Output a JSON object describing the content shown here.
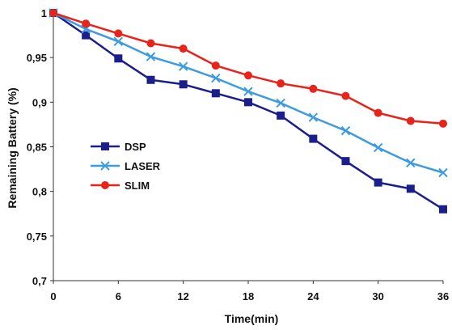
{
  "chart_data": {
    "type": "line",
    "xlabel": "Time(min)",
    "ylabel": "Remaining Battery (%)",
    "xlim": [
      0,
      36
    ],
    "ylim": [
      0.7,
      1.0
    ],
    "x_ticks": [
      "0",
      "6",
      "12",
      "18",
      "24",
      "30",
      "36"
    ],
    "x_tick_values": [
      0,
      6,
      12,
      18,
      24,
      30,
      36
    ],
    "y_ticks": [
      "0,7",
      "0,75",
      "0,8",
      "0,85",
      "0,9",
      "0,95",
      "1"
    ],
    "y_tick_values": [
      0.7,
      0.75,
      0.8,
      0.85,
      0.9,
      0.95,
      1.0
    ],
    "grid": false,
    "legend_position": "left",
    "x": [
      0,
      3,
      6,
      9,
      12,
      15,
      18,
      21,
      24,
      27,
      30,
      33,
      36
    ],
    "series": [
      {
        "name": "DSP",
        "color": "#1a1f8c",
        "marker": "square",
        "values": [
          1.0,
          0.975,
          0.949,
          0.925,
          0.92,
          0.91,
          0.9,
          0.885,
          0.859,
          0.834,
          0.81,
          0.803,
          0.78
        ]
      },
      {
        "name": "LASER",
        "color": "#3d9be0",
        "marker": "x",
        "values": [
          1.0,
          0.982,
          0.968,
          0.951,
          0.94,
          0.927,
          0.912,
          0.899,
          0.883,
          0.868,
          0.849,
          0.832,
          0.821
        ]
      },
      {
        "name": "SLIM",
        "color": "#e8231a",
        "marker": "circle",
        "values": [
          1.0,
          0.988,
          0.977,
          0.966,
          0.96,
          0.941,
          0.93,
          0.921,
          0.915,
          0.907,
          0.888,
          0.879,
          0.876
        ]
      }
    ]
  }
}
